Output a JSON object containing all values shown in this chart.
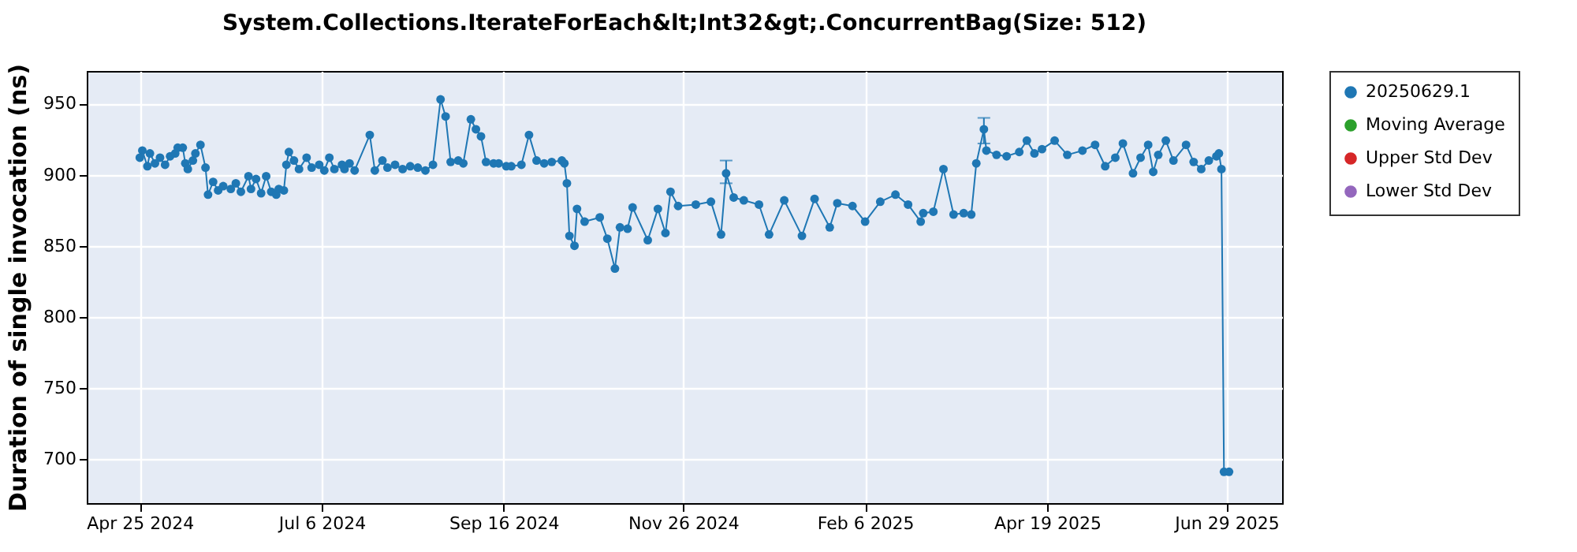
{
  "chart_data": {
    "type": "line",
    "title": "System.Collections.IterateForEach&lt;Int32&gt;.ConcurrentBag(Size: 512)",
    "ylabel": "Duration of single invocation (ns)",
    "x": [
      "2024-04-25",
      "2024-04-26",
      "2024-04-28",
      "2024-04-29",
      "2024-05-01",
      "2024-05-03",
      "2024-05-05",
      "2024-05-07",
      "2024-05-09",
      "2024-05-10",
      "2024-05-12",
      "2024-05-13",
      "2024-05-14",
      "2024-05-16",
      "2024-05-17",
      "2024-05-19",
      "2024-05-21",
      "2024-05-22",
      "2024-05-24",
      "2024-05-26",
      "2024-05-28",
      "2024-05-31",
      "2024-06-02",
      "2024-06-04",
      "2024-06-07",
      "2024-06-08",
      "2024-06-10",
      "2024-06-12",
      "2024-06-14",
      "2024-06-16",
      "2024-06-18",
      "2024-06-19",
      "2024-06-21",
      "2024-06-22",
      "2024-06-23",
      "2024-06-25",
      "2024-06-27",
      "2024-06-30",
      "2024-07-02",
      "2024-07-05",
      "2024-07-07",
      "2024-07-09",
      "2024-07-11",
      "2024-07-14",
      "2024-07-15",
      "2024-07-17",
      "2024-07-19",
      "2024-07-25",
      "2024-07-27",
      "2024-07-30",
      "2024-08-01",
      "2024-08-04",
      "2024-08-07",
      "2024-08-10",
      "2024-08-13",
      "2024-08-16",
      "2024-08-19",
      "2024-08-22",
      "2024-08-24",
      "2024-08-26",
      "2024-08-29",
      "2024-08-31",
      "2024-09-03",
      "2024-09-05",
      "2024-09-07",
      "2024-09-09",
      "2024-09-12",
      "2024-09-14",
      "2024-09-17",
      "2024-09-19",
      "2024-09-23",
      "2024-09-26",
      "2024-09-29",
      "2024-10-02",
      "2024-10-05",
      "2024-10-09",
      "2024-10-10",
      "2024-10-11",
      "2024-10-12",
      "2024-10-14",
      "2024-10-15",
      "2024-10-18",
      "2024-10-24",
      "2024-10-27",
      "2024-10-30",
      "2024-11-01",
      "2024-11-04",
      "2024-11-06",
      "2024-11-12",
      "2024-11-16",
      "2024-11-19",
      "2024-11-21",
      "2024-11-24",
      "2024-12-01",
      "2024-12-07",
      "2024-12-11",
      "2024-12-13",
      "2024-12-16",
      "2024-12-20",
      "2024-12-26",
      "2024-12-30",
      "2025-01-05",
      "2025-01-12",
      "2025-01-17",
      "2025-01-23",
      "2025-01-26",
      "2025-02-01",
      "2025-02-06",
      "2025-02-12",
      "2025-02-18",
      "2025-02-23",
      "2025-02-28",
      "2025-03-01",
      "2025-03-05",
      "2025-03-09",
      "2025-03-13",
      "2025-03-17",
      "2025-03-20",
      "2025-03-22",
      "2025-03-25",
      "2025-03-26",
      "2025-03-30",
      "2025-04-03",
      "2025-04-08",
      "2025-04-11",
      "2025-04-14",
      "2025-04-17",
      "2025-04-22",
      "2025-04-27",
      "2025-05-03",
      "2025-05-08",
      "2025-05-12",
      "2025-05-16",
      "2025-05-19",
      "2025-05-23",
      "2025-05-26",
      "2025-05-29",
      "2025-05-31",
      "2025-06-02",
      "2025-06-05",
      "2025-06-08",
      "2025-06-13",
      "2025-06-16",
      "2025-06-19",
      "2025-06-22",
      "2025-06-25",
      "2025-06-26",
      "2025-06-27",
      "2025-06-28",
      "2025-06-30"
    ],
    "series": [
      {
        "name": "20250629.1",
        "color": "#1f77b4",
        "values": [
          912,
          917,
          906,
          915,
          908,
          912,
          907,
          913,
          915,
          919,
          919,
          908,
          904,
          910,
          915,
          921,
          905,
          886,
          895,
          889,
          892,
          890,
          894,
          888,
          899,
          890,
          897,
          887,
          899,
          888,
          886,
          890,
          889,
          907,
          916,
          910,
          904,
          912,
          905,
          907,
          903,
          912,
          904,
          907,
          904,
          908,
          903,
          928,
          903,
          910,
          905,
          907,
          904,
          906,
          905,
          903,
          907,
          953,
          941,
          909,
          910,
          908,
          939,
          932,
          927,
          909,
          908,
          908,
          906,
          906,
          907,
          928,
          910,
          908,
          909,
          910,
          908,
          894,
          857,
          850,
          876,
          867,
          870,
          855,
          834,
          863,
          862,
          877,
          854,
          876,
          859,
          888,
          878,
          879,
          881,
          858,
          901,
          884,
          882,
          879,
          858,
          882,
          857,
          883,
          863,
          880,
          878,
          867,
          881,
          886,
          879,
          867,
          873,
          874,
          904,
          872,
          873,
          872,
          908,
          932,
          917,
          914,
          913,
          916,
          924,
          915,
          918,
          924,
          914,
          917,
          921,
          906,
          912,
          922,
          901,
          912,
          921,
          902,
          914,
          924,
          910,
          921,
          909,
          904,
          910,
          913,
          915,
          904,
          691,
          691
        ],
        "errors": [
          null,
          null,
          null,
          null,
          null,
          null,
          null,
          null,
          null,
          null,
          null,
          null,
          null,
          null,
          null,
          null,
          null,
          null,
          null,
          null,
          null,
          null,
          null,
          null,
          null,
          null,
          null,
          null,
          null,
          null,
          null,
          null,
          null,
          null,
          null,
          null,
          null,
          null,
          null,
          null,
          null,
          null,
          null,
          null,
          null,
          null,
          null,
          null,
          null,
          null,
          null,
          null,
          null,
          null,
          null,
          null,
          null,
          null,
          null,
          null,
          null,
          null,
          null,
          null,
          null,
          null,
          null,
          null,
          null,
          null,
          null,
          null,
          null,
          null,
          null,
          null,
          null,
          null,
          null,
          null,
          null,
          null,
          null,
          null,
          null,
          null,
          null,
          null,
          null,
          null,
          null,
          null,
          null,
          null,
          null,
          null,
          [
            894,
            910
          ],
          null,
          null,
          null,
          null,
          null,
          null,
          null,
          null,
          null,
          null,
          null,
          null,
          null,
          null,
          null,
          null,
          null,
          null,
          null,
          null,
          null,
          null,
          [
            922,
            940
          ],
          null,
          null,
          null,
          null,
          null,
          null,
          null,
          null,
          null,
          null,
          null,
          null,
          null,
          null,
          null,
          null,
          null,
          null,
          null,
          null,
          null,
          null,
          null,
          null,
          null,
          null,
          null,
          null,
          null,
          null
        ]
      },
      {
        "name": "Moving Average",
        "color": "#2ca02c",
        "values": [
          null,
          null,
          null,
          null,
          null,
          null,
          null,
          null,
          null,
          null,
          null,
          null,
          null,
          null,
          null,
          null,
          null,
          null,
          null,
          null,
          null,
          null,
          null,
          null,
          null,
          null,
          null,
          null,
          null,
          null,
          null,
          null,
          null,
          null,
          null,
          null,
          null,
          null,
          null,
          null,
          null,
          null,
          null,
          null,
          null,
          null,
          null,
          null,
          null,
          null,
          null,
          null,
          null,
          null,
          null,
          null,
          null,
          null,
          null,
          null,
          null,
          null,
          null,
          null,
          null,
          null,
          null,
          null,
          null,
          null,
          null,
          null,
          null,
          null,
          null,
          null,
          null,
          null,
          null,
          null,
          null,
          null,
          null,
          null,
          null,
          null,
          null,
          null,
          null,
          null,
          null,
          null,
          null,
          null,
          null,
          null,
          null,
          null,
          null,
          null,
          null,
          null,
          null,
          null,
          null,
          null,
          null,
          null,
          null,
          null,
          null,
          null,
          null,
          null,
          null,
          null,
          null,
          null,
          null,
          null,
          null,
          null,
          null,
          null,
          null,
          null,
          null,
          null,
          null,
          null,
          null,
          null,
          null,
          null,
          null,
          null,
          null,
          null,
          null,
          null,
          null,
          null,
          null,
          null,
          null,
          null,
          null,
          null,
          null,
          null
        ]
      },
      {
        "name": "Upper Std Dev",
        "color": "#d62728",
        "values": [
          null,
          null,
          null,
          null,
          null,
          null,
          null,
          null,
          null,
          null,
          null,
          null,
          null,
          null,
          null,
          null,
          null,
          null,
          null,
          null,
          null,
          null,
          null,
          null,
          null,
          null,
          null,
          null,
          null,
          null,
          null,
          null,
          null,
          null,
          null,
          null,
          null,
          null,
          null,
          null,
          null,
          null,
          null,
          null,
          null,
          null,
          null,
          null,
          null,
          null,
          null,
          null,
          null,
          null,
          null,
          null,
          null,
          null,
          null,
          null,
          null,
          null,
          null,
          null,
          null,
          null,
          null,
          null,
          null,
          null,
          null,
          null,
          null,
          null,
          null,
          null,
          null,
          null,
          null,
          null,
          null,
          null,
          null,
          null,
          null,
          null,
          null,
          null,
          null,
          null,
          null,
          null,
          null,
          null,
          null,
          null,
          null,
          null,
          null,
          null,
          null,
          null,
          null,
          null,
          null,
          null,
          null,
          null,
          null,
          null,
          null,
          null,
          null,
          null,
          null,
          null,
          null,
          null,
          null,
          null,
          null,
          null,
          null,
          null,
          null,
          null,
          null,
          null,
          null,
          null,
          null,
          null,
          null,
          null,
          null,
          null,
          null,
          null,
          null,
          null,
          null,
          null,
          null,
          null,
          null,
          null,
          null,
          null,
          null,
          null
        ]
      },
      {
        "name": "Lower Std Dev",
        "color": "#9467bd",
        "values": [
          null,
          null,
          null,
          null,
          null,
          null,
          null,
          null,
          null,
          null,
          null,
          null,
          null,
          null,
          null,
          null,
          null,
          null,
          null,
          null,
          null,
          null,
          null,
          null,
          null,
          null,
          null,
          null,
          null,
          null,
          null,
          null,
          null,
          null,
          null,
          null,
          null,
          null,
          null,
          null,
          null,
          null,
          null,
          null,
          null,
          null,
          null,
          null,
          null,
          null,
          null,
          null,
          null,
          null,
          null,
          null,
          null,
          null,
          null,
          null,
          null,
          null,
          null,
          null,
          null,
          null,
          null,
          null,
          null,
          null,
          null,
          null,
          null,
          null,
          null,
          null,
          null,
          null,
          null,
          null,
          null,
          null,
          null,
          null,
          null,
          null,
          null,
          null,
          null,
          null,
          null,
          null,
          null,
          null,
          null,
          null,
          null,
          null,
          null,
          null,
          null,
          null,
          null,
          null,
          null,
          null,
          null,
          null,
          null,
          null,
          null,
          null,
          null,
          null,
          null,
          null,
          null,
          null,
          null,
          null,
          null,
          null,
          null,
          null,
          null,
          null,
          null,
          null,
          null,
          null,
          null,
          null,
          null,
          null,
          null,
          null,
          null,
          null,
          null,
          null,
          null,
          null,
          null,
          null,
          null,
          null,
          null,
          null,
          null,
          null
        ]
      }
    ],
    "xlim": [
      "2024-04-04",
      "2025-07-21"
    ],
    "xticks": [
      {
        "value": "2024-04-25",
        "label": "Apr 25 2024"
      },
      {
        "value": "2024-07-06",
        "label": "Jul 6 2024"
      },
      {
        "value": "2024-09-16",
        "label": "Sep 16 2024"
      },
      {
        "value": "2024-11-26",
        "label": "Nov 26 2024"
      },
      {
        "value": "2025-02-06",
        "label": "Feb 6 2025"
      },
      {
        "value": "2025-04-19",
        "label": "Apr 19 2025"
      },
      {
        "value": "2025-06-29",
        "label": "Jun 29 2025"
      }
    ],
    "ylim": [
      669,
      973
    ],
    "yticks": [
      700,
      750,
      800,
      850,
      900,
      950
    ],
    "grid": true,
    "legend": "right",
    "marker": "circle",
    "line_style": "solid"
  }
}
